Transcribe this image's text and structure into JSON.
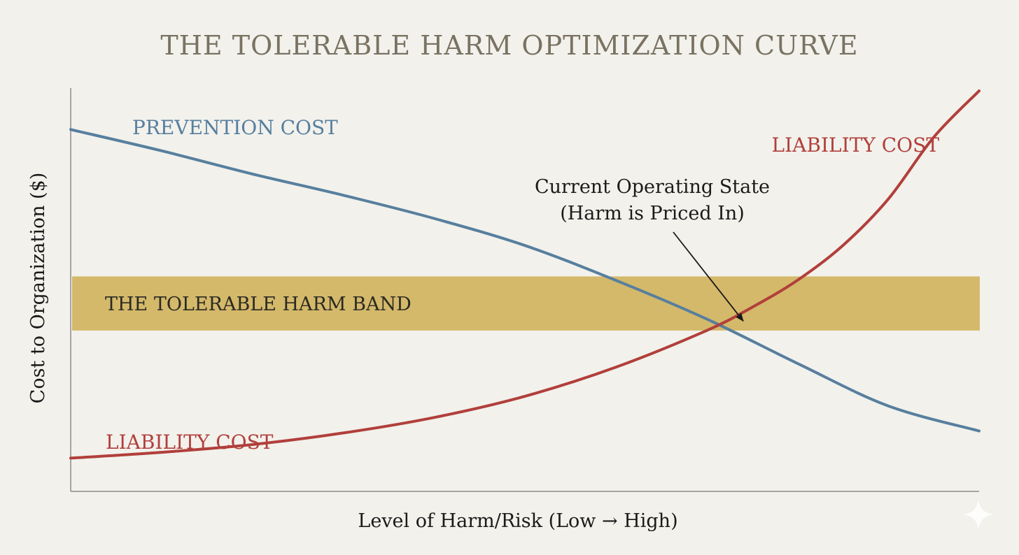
{
  "chart_data": {
    "type": "line",
    "title": "THE TOLERABLE HARM OPTIMIZATION CURVE",
    "xlabel": "Level of Harm/Risk (Low → High)",
    "ylabel": "Cost to Organization ($)",
    "xlim": [
      0,
      100
    ],
    "ylim": [
      0,
      100
    ],
    "grid": false,
    "colors": {
      "background": "#f2f1ec",
      "title": "#7a7262",
      "axis": "#8c8c8c",
      "prevention": "#577f9e",
      "liability": "#b13f3b",
      "band": "#d4b96a",
      "annotation": "#1a1a1a"
    },
    "series": [
      {
        "name": "PREVENTION COST",
        "labels": [
          "PREVENTION COST"
        ],
        "x": [
          0,
          10,
          20,
          30,
          40,
          50,
          60,
          70,
          80,
          90,
          100
        ],
        "values": [
          90,
          84.5,
          78.5,
          73,
          67,
          60,
          51,
          41,
          29.5,
          18.5,
          12
        ]
      },
      {
        "name": "LIABILITY COST",
        "labels": [
          "LIABILITY COST",
          "LIABILITY COST"
        ],
        "x": [
          0,
          10,
          20,
          30,
          40,
          50,
          60,
          70,
          75,
          80,
          85,
          90,
          95,
          100
        ],
        "values": [
          5,
          6.5,
          8.5,
          11.5,
          15.5,
          21,
          28.5,
          38,
          44,
          51,
          60,
          72,
          88,
          100
        ]
      }
    ],
    "band": {
      "label": "THE TOLERABLE HARM BAND",
      "ymin": 38,
      "ymax": 52
    },
    "annotation": {
      "lines": [
        "Current Operating State",
        "(Harm is Priced In)"
      ],
      "x": 74.5,
      "y": 39
    }
  }
}
